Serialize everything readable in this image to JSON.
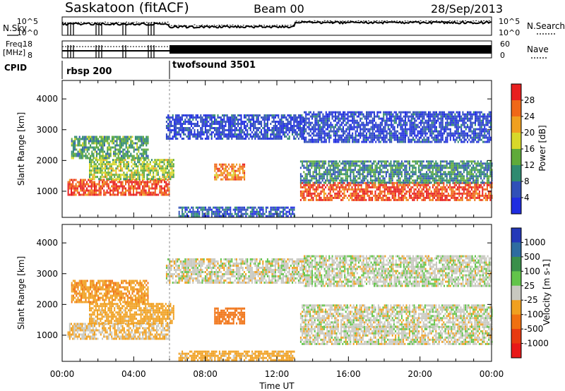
{
  "header": {
    "station": "Saskatoon (fitACF)",
    "beam": "Beam 00",
    "date": "28/Sep/2013"
  },
  "summary": {
    "nsky_label": "N.Sky",
    "nsearch_label": "N.Search",
    "freq_label": "Freq.",
    "freq_unit": "[MHz]",
    "nave_label": "Nave",
    "cpid_label": "CPID",
    "noise_ticks_left": [
      "10^5",
      "10^0"
    ],
    "noise_ticks_right": [
      "10^5",
      "10^0"
    ],
    "freq_ticks": [
      "18",
      "8"
    ],
    "nave_ticks": [
      "60",
      "0"
    ],
    "cpid_segments": [
      {
        "name": "rbsp 200",
        "start_hour": 0,
        "end_hour": 6
      },
      {
        "name": "twofsound 3501",
        "start_hour": 6,
        "end_hour": 24
      }
    ]
  },
  "chart_data": [
    {
      "type": "heatmap",
      "title": "",
      "ylabel": "Slant Range [km]",
      "xlabel": "",
      "xlim": [
        0,
        24
      ],
      "ylim": [
        150,
        4600
      ],
      "y_ticks": [
        "1000",
        "2000",
        "3000",
        "4000"
      ],
      "colorbar": {
        "label": "Power [dB]",
        "ticks": [
          "4",
          "8",
          "12",
          "16",
          "20",
          "24",
          "28"
        ],
        "colors": [
          "#1f2de0",
          "#3050b8",
          "#2f8a70",
          "#5faa3a",
          "#d8d82a",
          "#f0a020",
          "#f06818",
          "#e82020"
        ],
        "range": [
          0,
          32
        ]
      },
      "regions": [
        {
          "x": [
            0.3,
            6.0
          ],
          "y": [
            850,
            1400
          ],
          "value": 28
        },
        {
          "x": [
            1.5,
            6.2
          ],
          "y": [
            1400,
            2050
          ],
          "value": 16
        },
        {
          "x": [
            0.5,
            4.8
          ],
          "y": [
            2050,
            2800
          ],
          "value": 12
        },
        {
          "x": [
            8.5,
            10.2
          ],
          "y": [
            1400,
            1900
          ],
          "value": 24
        },
        {
          "x": [
            5.8,
            13.5
          ],
          "y": [
            2700,
            3500
          ],
          "value": 4
        },
        {
          "x": [
            6.5,
            13.0
          ],
          "y": [
            200,
            500
          ],
          "value": 6
        },
        {
          "x": [
            13.3,
            24.0
          ],
          "y": [
            700,
            1300
          ],
          "value": 28
        },
        {
          "x": [
            13.3,
            24.0
          ],
          "y": [
            1300,
            2000
          ],
          "value": 10
        },
        {
          "x": [
            13.5,
            24.0
          ],
          "y": [
            2600,
            3600
          ],
          "value": 4
        }
      ]
    },
    {
      "type": "heatmap",
      "title": "",
      "ylabel": "Slant Range [km]",
      "xlabel": "Time UT",
      "xlim": [
        0,
        24
      ],
      "ylim": [
        150,
        4600
      ],
      "x_ticks": [
        "00:00",
        "04:00",
        "08:00",
        "12:00",
        "16:00",
        "20:00",
        "00:00"
      ],
      "y_ticks": [
        "1000",
        "2000",
        "3000",
        "4000"
      ],
      "colorbar": {
        "label": "Velocity [m s-1]",
        "ticks": [
          "1000",
          "500",
          "100",
          "25",
          "-25",
          "-100",
          "-500",
          "-1000"
        ],
        "colors": [
          "#2438b8",
          "#2e6ca0",
          "#3a8f4a",
          "#62c44a",
          "#c8c8c0",
          "#f0a020",
          "#f07010",
          "#e83a10",
          "#e81818"
        ],
        "range": [
          -1000,
          1000
        ]
      },
      "regions": [
        {
          "x": [
            0.3,
            6.0
          ],
          "y": [
            850,
            1400
          ],
          "value": -30
        },
        {
          "x": [
            1.5,
            6.2
          ],
          "y": [
            1400,
            2050
          ],
          "value": -60
        },
        {
          "x": [
            0.5,
            4.8
          ],
          "y": [
            2050,
            2800
          ],
          "value": -80
        },
        {
          "x": [
            8.5,
            10.2
          ],
          "y": [
            1400,
            1900
          ],
          "value": -150
        },
        {
          "x": [
            5.8,
            13.5
          ],
          "y": [
            2700,
            3500
          ],
          "value": 0
        },
        {
          "x": [
            6.5,
            13.0
          ],
          "y": [
            200,
            500
          ],
          "value": -60
        },
        {
          "x": [
            13.3,
            24.0
          ],
          "y": [
            700,
            1300
          ],
          "value": 0
        },
        {
          "x": [
            13.3,
            24.0
          ],
          "y": [
            1300,
            2000
          ],
          "value": 0
        },
        {
          "x": [
            13.5,
            24.0
          ],
          "y": [
            2600,
            3600
          ],
          "value": 5
        }
      ]
    }
  ]
}
